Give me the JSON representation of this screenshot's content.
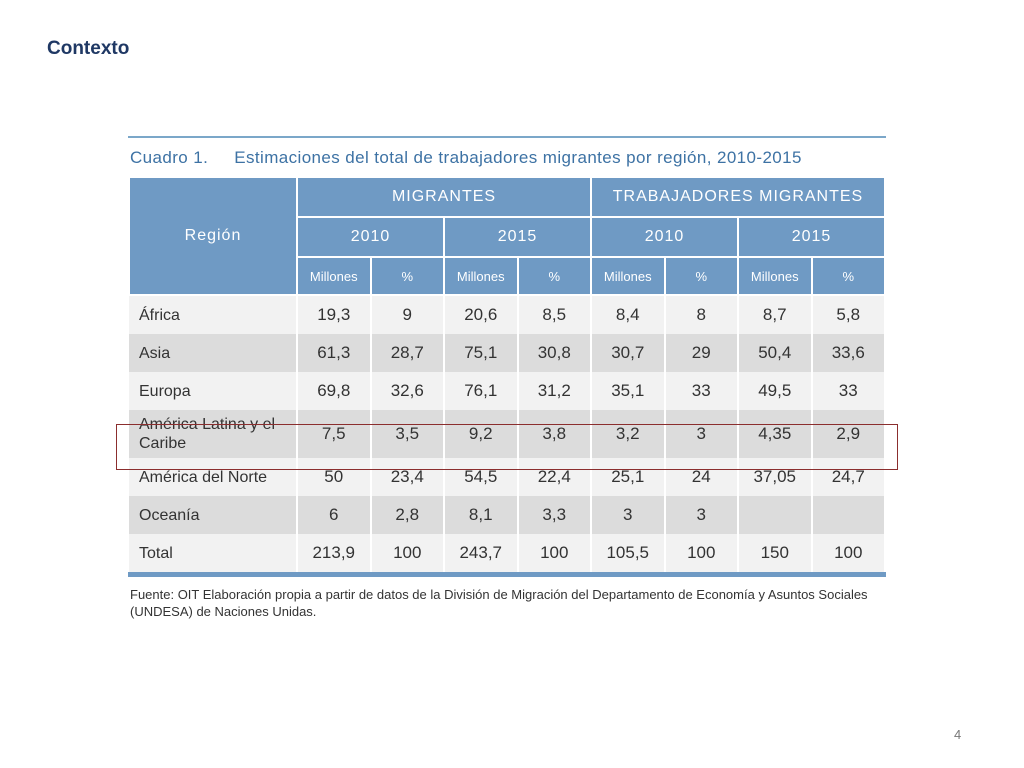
{
  "slide": {
    "title": "Contexto",
    "page_number": "4"
  },
  "figure": {
    "caption_number": "Cuadro 1.",
    "caption_text": "Estimaciones del total de trabajadores migrantes por región, 2010-2015",
    "header": {
      "region": "Región",
      "migrantes": "MIGRANTES",
      "trabajadores": "TRABAJADORES MIGRANTES",
      "years": [
        "2010",
        "2015",
        "2010",
        "2015"
      ],
      "subcols": [
        "Millones",
        "%",
        "Millones",
        "%",
        "Millones",
        "%",
        "Millones",
        "%"
      ]
    },
    "rows": [
      {
        "region": "África",
        "values": [
          "19,3",
          "9",
          "20,6",
          "8,5",
          "8,4",
          "8",
          "8,7",
          "5,8"
        ]
      },
      {
        "region": "Asia",
        "values": [
          "61,3",
          "28,7",
          "75,1",
          "30,8",
          "30,7",
          "29",
          "50,4",
          "33,6"
        ]
      },
      {
        "region": "Europa",
        "values": [
          "69,8",
          "32,6",
          "76,1",
          "31,2",
          "35,1",
          "33",
          "49,5",
          "33"
        ]
      },
      {
        "region": "América Latina y el Caribe",
        "values": [
          "7,5",
          "3,5",
          "9,2",
          "3,8",
          "3,2",
          "3",
          "4,35",
          "2,9"
        ]
      },
      {
        "region": "América del Norte",
        "values": [
          "50",
          "23,4",
          "54,5",
          "22,4",
          "25,1",
          "24",
          "37,05",
          "24,7"
        ]
      },
      {
        "region": "Oceanía",
        "values": [
          "6",
          "2,8",
          "8,1",
          "3,3",
          "3",
          "3",
          "",
          ""
        ]
      },
      {
        "region": "Total",
        "values": [
          "213,9",
          "100",
          "243,7",
          "100",
          "105,5",
          "100",
          "150",
          "100"
        ]
      }
    ],
    "source": "Fuente: OIT Elaboración propia a partir de datos de la División de Migración del Departamento de Economía y Asuntos Sociales (UNDESA) de Naciones Unidas."
  },
  "colors": {
    "title": "#1f3864",
    "header_fill": "#6f9ac4",
    "caption": "#3d72a4",
    "highlight_border": "#8b2e2e"
  }
}
